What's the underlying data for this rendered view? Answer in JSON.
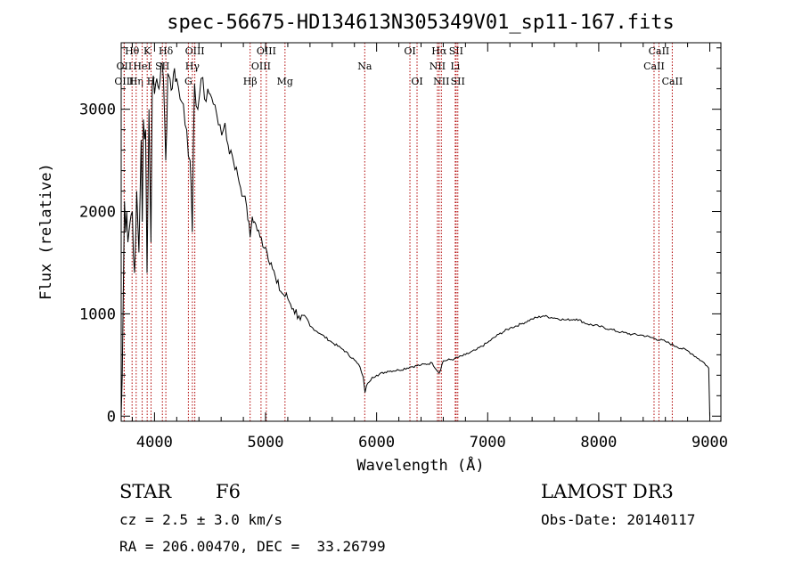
{
  "chart_data": {
    "type": "line",
    "title": "spec-56675-HD134613N305349V01_sp11-167.fits",
    "xlabel": "Wavelength (Å)",
    "ylabel": "Flux (relative)",
    "xlim": [
      3700,
      9100
    ],
    "ylim": [
      -50,
      3650
    ],
    "x_ticks": [
      4000,
      5000,
      6000,
      7000,
      8000,
      9000
    ],
    "y_ticks": [
      0,
      1000,
      2000,
      3000
    ],
    "series": [
      {
        "name": "spectrum",
        "x": [
          3700,
          3710,
          3720,
          3730,
          3740,
          3750,
          3760,
          3780,
          3800,
          3820,
          3840,
          3860,
          3880,
          3890,
          3900,
          3920,
          3933,
          3950,
          3968,
          3980,
          4000,
          4020,
          4040,
          4060,
          4080,
          4101,
          4120,
          4140,
          4160,
          4180,
          4200,
          4230,
          4260,
          4290,
          4320,
          4340,
          4360,
          4390,
          4420,
          4450,
          4480,
          4500,
          4530,
          4560,
          4590,
          4620,
          4650,
          4700,
          4750,
          4800,
          4830,
          4861,
          4880,
          4900,
          4950,
          5000,
          5050,
          5100,
          5150,
          5200,
          5250,
          5300,
          5400,
          5500,
          5600,
          5700,
          5800,
          5850,
          5880,
          5895,
          5910,
          5930,
          5960,
          6000,
          6100,
          6200,
          6300,
          6400,
          6500,
          6563,
          6600,
          6700,
          6800,
          6900,
          7000,
          7100,
          7200,
          7300,
          7400,
          7500,
          7600,
          7700,
          7800,
          7900,
          8000,
          8100,
          8200,
          8300,
          8400,
          8500,
          8600,
          8700,
          8800,
          8850,
          8900,
          8950,
          8990,
          9000
        ],
        "values": [
          0,
          400,
          1300,
          2100,
          1800,
          2000,
          1700,
          1900,
          2000,
          1400,
          2200,
          1600,
          2700,
          1900,
          2900,
          2800,
          1400,
          3000,
          1700,
          3250,
          3150,
          3300,
          3200,
          3450,
          3300,
          2500,
          3350,
          3300,
          3200,
          3400,
          3300,
          3100,
          3050,
          2800,
          2500,
          1800,
          3250,
          3000,
          3300,
          3100,
          3200,
          3150,
          3050,
          2950,
          2850,
          2800,
          2700,
          2550,
          2350,
          2150,
          2050,
          1750,
          1950,
          1900,
          1750,
          1650,
          1500,
          1300,
          1200,
          1150,
          1050,
          980,
          880,
          800,
          720,
          650,
          550,
          480,
          380,
          230,
          300,
          330,
          380,
          400,
          440,
          450,
          480,
          500,
          520,
          420,
          540,
          560,
          600,
          650,
          720,
          800,
          860,
          900,
          950,
          980,
          960,
          940,
          950,
          900,
          880,
          850,
          820,
          800,
          790,
          760,
          730,
          680,
          640,
          600,
          560,
          520,
          470,
          0
        ]
      }
    ],
    "lines": [
      {
        "label": "Hθ",
        "x": 3798,
        "row": 1
      },
      {
        "label": "OII",
        "x": 3727,
        "row": 2
      },
      {
        "label": "OIII",
        "x": 3727,
        "row": 3
      },
      {
        "label": "Hη",
        "x": 3835,
        "row": 3
      },
      {
        "label": "K",
        "x": 3934,
        "row": 1
      },
      {
        "label": "HeI",
        "x": 3889,
        "row": 2
      },
      {
        "label": "SII",
        "x": 4071,
        "row": 2
      },
      {
        "label": "H",
        "x": 3969,
        "row": 3
      },
      {
        "label": "Hδ",
        "x": 4102,
        "row": 1
      },
      {
        "label": "OIII",
        "x": 4363,
        "row": 1
      },
      {
        "label": "Hγ",
        "x": 4341,
        "row": 2
      },
      {
        "label": "G",
        "x": 4305,
        "row": 3
      },
      {
        "label": "OIII",
        "x": 5007,
        "row": 1
      },
      {
        "label": "OIII",
        "x": 4959,
        "row": 2
      },
      {
        "label": "Hβ",
        "x": 4861,
        "row": 3
      },
      {
        "label": "Mg",
        "x": 5175,
        "row": 3
      },
      {
        "label": "Na",
        "x": 5893,
        "row": 2
      },
      {
        "label": "OI",
        "x": 6300,
        "row": 1
      },
      {
        "label": "OI",
        "x": 6364,
        "row": 3
      },
      {
        "label": "Hα",
        "x": 6563,
        "row": 1
      },
      {
        "label": "SII",
        "x": 6716,
        "row": 1
      },
      {
        "label": "NII",
        "x": 6548,
        "row": 2
      },
      {
        "label": "Li",
        "x": 6708,
        "row": 2
      },
      {
        "label": "NII",
        "x": 6583,
        "row": 3
      },
      {
        "label": "SII",
        "x": 6731,
        "row": 3
      },
      {
        "label": "CaII",
        "x": 8542,
        "row": 1
      },
      {
        "label": "CaII",
        "x": 8498,
        "row": 2
      },
      {
        "label": "CaII",
        "x": 8662,
        "row": 3
      }
    ]
  },
  "info": {
    "object_class": "STAR",
    "subclass": "F6",
    "redshift": "cz = 2.5 ± 3.0 km/s",
    "coords": "RA = 206.00470, DEC =  33.26799",
    "survey": "LAMOST DR3",
    "obs_date": "Obs-Date: 20140117"
  }
}
